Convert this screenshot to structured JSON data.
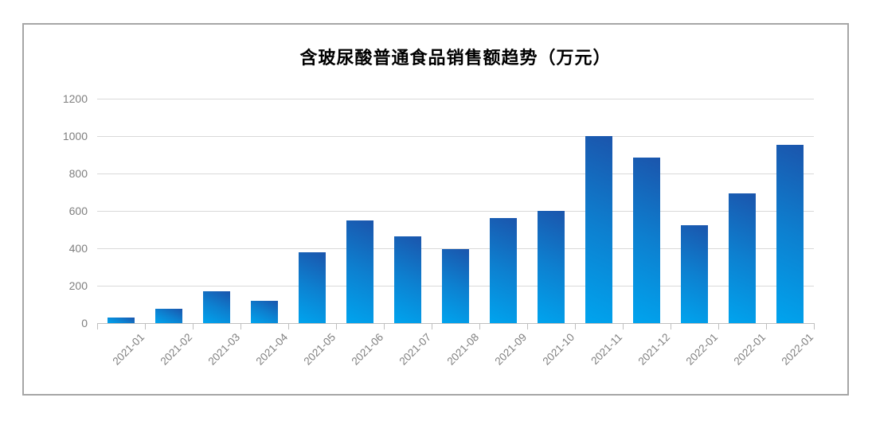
{
  "chart": {
    "title": "含玻尿酸普通食品销售额趋势（万元）"
  },
  "chart_data": {
    "type": "bar",
    "title": "含玻尿酸普通食品销售额趋势（万元）",
    "categories": [
      "2021-01",
      "2021-02",
      "2021-03",
      "2021-04",
      "2021-05",
      "2021-06",
      "2021-07",
      "2021-08",
      "2021-09",
      "2021-10",
      "2021-11",
      "2021-12",
      "2022-01",
      "2022-01",
      "2022-01"
    ],
    "values": [
      30,
      75,
      170,
      120,
      380,
      550,
      465,
      395,
      560,
      600,
      1000,
      885,
      525,
      695,
      955
    ],
    "yticks": [
      0,
      200,
      400,
      600,
      800,
      1000,
      1200
    ],
    "ylim": [
      0,
      1200
    ],
    "xlabel": "",
    "ylabel": "",
    "grid": true,
    "legend": false,
    "x_tick_rotation": 45
  },
  "colors": {
    "bar_gradient_top": "#1b55ac",
    "bar_gradient_mid": "#0d80d0",
    "bar_gradient_bottom": "#00a4ee",
    "gridline": "#d9d9d9",
    "axis_line": "#bfbfbf",
    "tick_label": "#7f7f7f",
    "title": "#000000",
    "frame_border": "#a6a6a6",
    "background": "#ffffff"
  }
}
